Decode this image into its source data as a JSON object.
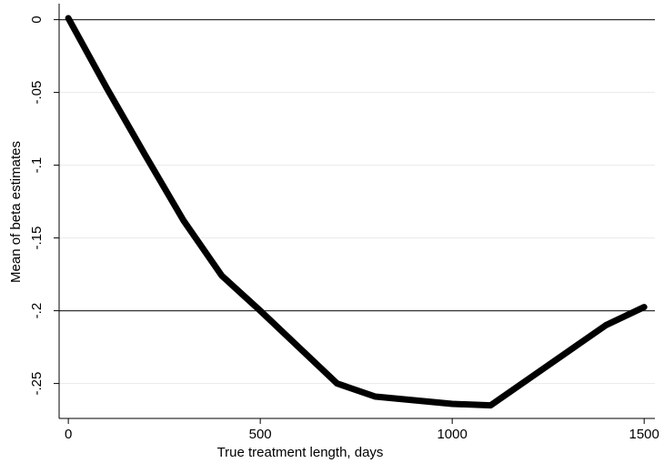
{
  "chart_data": {
    "type": "line",
    "x_label": "True treatment length, days",
    "y_label": "Mean of beta estimates",
    "x": [
      0,
      100,
      200,
      300,
      400,
      500,
      700,
      800,
      1000,
      1100,
      1400,
      1500
    ],
    "series": [
      {
        "color": "#000000",
        "values": [
          0.001,
          -0.047,
          -0.093,
          -0.138,
          -0.176,
          -0.2,
          -0.25,
          -0.259,
          -0.264,
          -0.265,
          -0.21,
          -0.1975
        ]
      }
    ],
    "xlim": [
      -24,
      1528
    ],
    "ylim": [
      -0.274,
      0.011
    ],
    "xticks": [
      0,
      500,
      1000,
      1500
    ],
    "yticks": [
      0,
      {
        "value": -0.05,
        "label": "-.05"
      },
      {
        "value": -0.1,
        "label": "-.1"
      },
      {
        "value": -0.15,
        "label": "-.15"
      },
      {
        "value": -0.2,
        "label": "-.2"
      },
      {
        "value": -0.25,
        "label": "-.25"
      }
    ],
    "reference_lines": [
      0,
      -0.2
    ],
    "grid": true
  }
}
